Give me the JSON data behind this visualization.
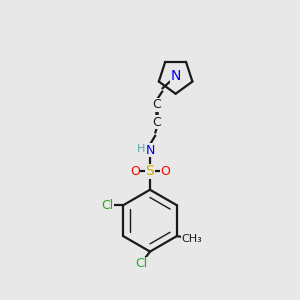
{
  "bg_color": "#e8e8e8",
  "bond_color": "#1a1a1a",
  "cl_color": "#22aa22",
  "n_color": "#0000ee",
  "s_color": "#ccaa00",
  "o_color": "#ff0000",
  "h_color": "#55aaaa",
  "figsize": [
    3.0,
    3.0
  ],
  "dpi": 100,
  "xlim": [
    0,
    10
  ],
  "ylim": [
    0,
    10
  ]
}
